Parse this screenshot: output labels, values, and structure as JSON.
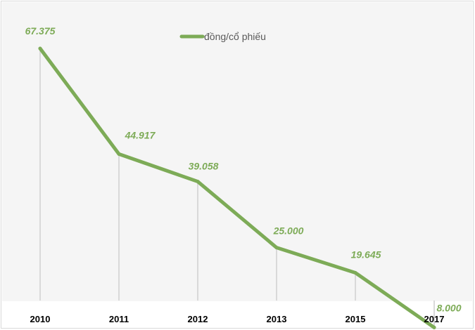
{
  "colors": {
    "series": "#7dab57",
    "background": "#ffffff",
    "plot_background": "#f5f5f5",
    "frame": "#d9d9d9",
    "drop_line": "#d9d9d9",
    "tick_text": "#000000"
  },
  "chart_data": {
    "type": "line",
    "title": "",
    "xlabel": "",
    "ylabel": "",
    "categories": [
      "2010",
      "2011",
      "2012",
      "2013",
      "2015",
      "2017"
    ],
    "series": [
      {
        "name": "đồng/cổ phiếu",
        "values": [
          67375,
          44917,
          39058,
          25000,
          19645,
          8000
        ],
        "labels": [
          "67.375",
          "44.917",
          "39.058",
          "25.000",
          "19.645",
          "8.000"
        ]
      }
    ],
    "ylim": [
      0,
      67375
    ],
    "grid": false,
    "drop_lines": true,
    "legend": "top-center"
  }
}
